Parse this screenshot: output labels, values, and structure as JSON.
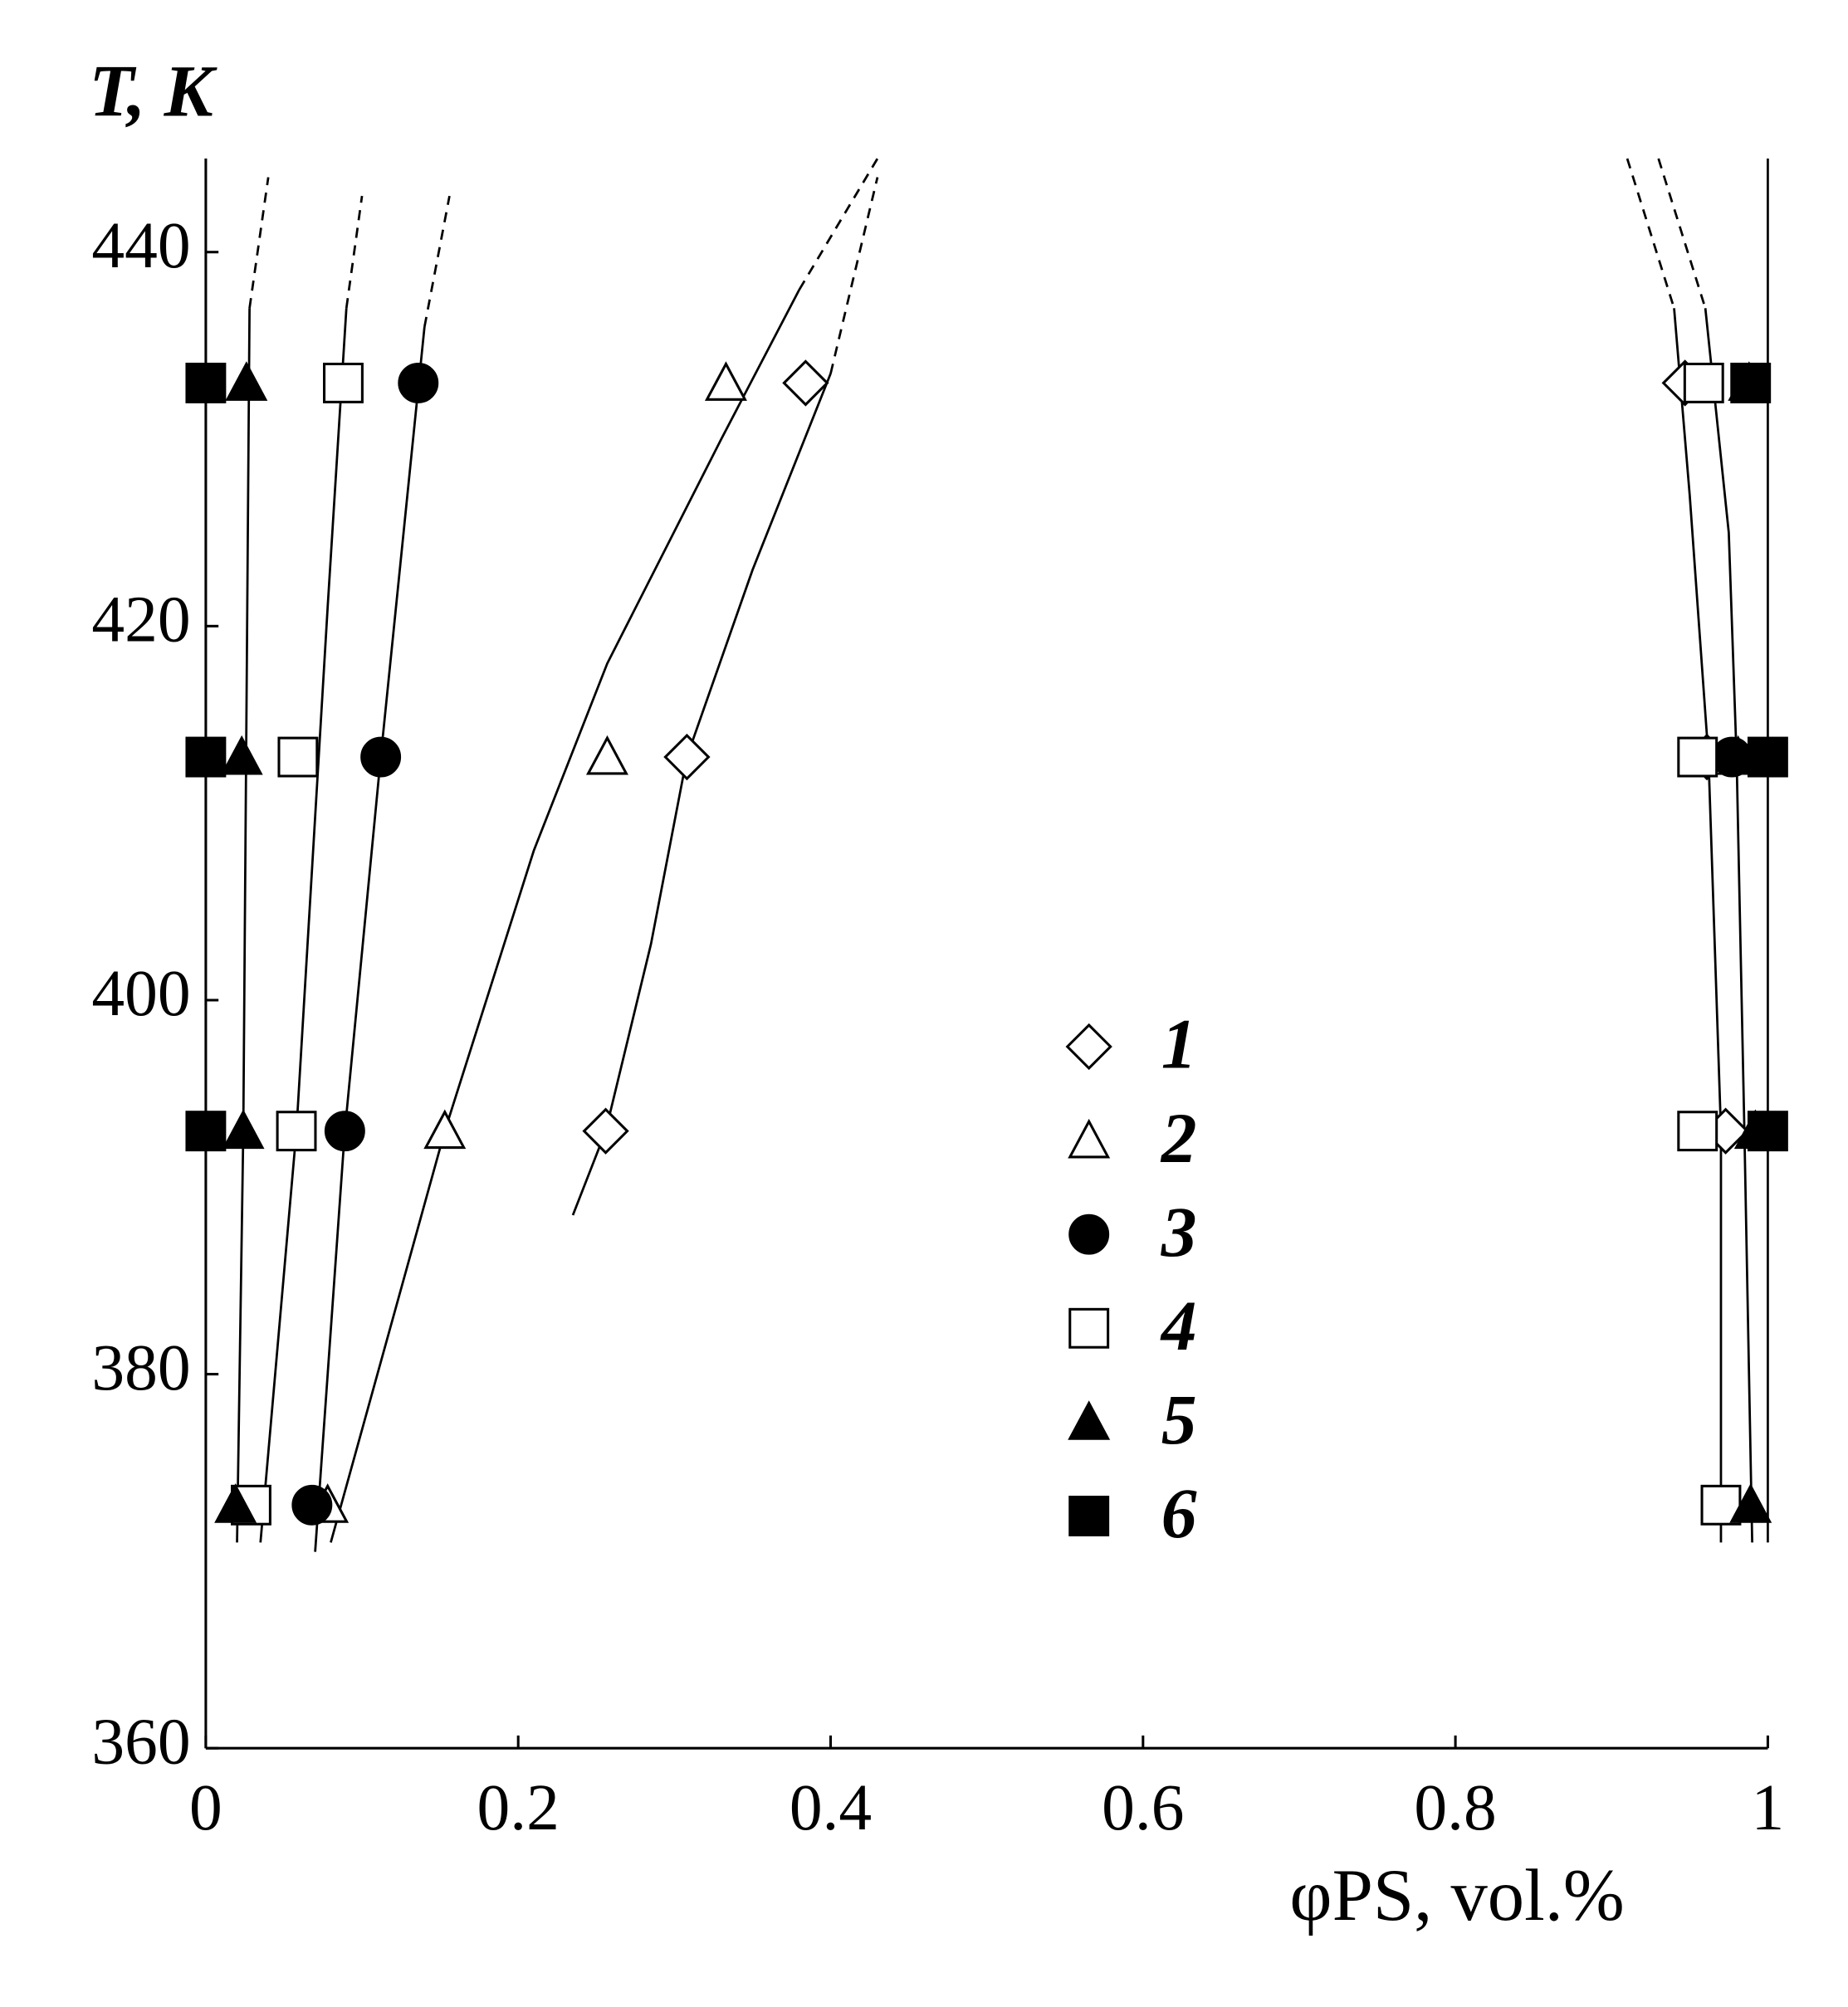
{
  "chart_data": {
    "type": "scatter",
    "xlabel": "φPS, vol.%",
    "ylabel": "T, K",
    "xlim": [
      0,
      1
    ],
    "ylim": [
      360,
      445
    ],
    "xticks": [
      0,
      0.2,
      0.4,
      0.6,
      0.8,
      1
    ],
    "yticks": [
      360,
      380,
      400,
      420,
      440
    ],
    "series": [
      {
        "name": "1",
        "marker": "diamond",
        "filled": false,
        "x": [
          0.256,
          0.308,
          0.384,
          0.973,
          0.961,
          0.947
        ],
        "values": [
          393,
          413,
          433,
          393,
          413,
          433
        ]
      },
      {
        "name": "2",
        "marker": "triangle",
        "filled": false,
        "x": [
          0.078,
          0.153,
          0.257,
          0.333
        ],
        "values": [
          373,
          393,
          413,
          433
        ]
      },
      {
        "name": "3",
        "marker": "circle",
        "filled": true,
        "x": [
          0.068,
          0.089,
          0.112,
          0.136,
          0.977
        ],
        "values": [
          373,
          393,
          413,
          433,
          413
        ]
      },
      {
        "name": "4",
        "marker": "square",
        "filled": false,
        "x": [
          0.029,
          0.058,
          0.059,
          0.088,
          0.97,
          0.955,
          0.955,
          0.959
        ],
        "values": [
          373,
          393,
          413,
          433,
          373,
          393,
          413,
          433
        ]
      },
      {
        "name": "5",
        "marker": "triangle",
        "filled": true,
        "x": [
          0.019,
          0.024,
          0.023,
          0.026,
          0.989,
          0.992,
          0.981,
          0.988
        ],
        "values": [
          373,
          393,
          413,
          433,
          373,
          393,
          413,
          433
        ]
      },
      {
        "name": "6",
        "marker": "square",
        "filled": true,
        "x": [
          0,
          0,
          0,
          1,
          1,
          0.989
        ],
        "values": [
          393,
          413,
          433,
          393,
          413,
          433
        ]
      }
    ],
    "curves": [
      {
        "style": "solid",
        "x": [
          0.235,
          0.256,
          0.285,
          0.308,
          0.35,
          0.4
        ],
        "y": [
          388.5,
          393,
          403,
          413,
          423,
          433.5
        ]
      },
      {
        "style": "dashed",
        "x": [
          0.4,
          0.43
        ],
        "y": [
          433.5,
          444
        ]
      },
      {
        "style": "solid",
        "x": [
          0.08,
          0.153,
          0.21,
          0.257,
          0.33,
          0.38
        ],
        "y": [
          371,
          393,
          408,
          418,
          430,
          438
        ]
      },
      {
        "style": "dashed",
        "x": [
          0.38,
          0.43
        ],
        "y": [
          438,
          445
        ]
      },
      {
        "style": "solid",
        "x": [
          0.07,
          0.089,
          0.112,
          0.14
        ],
        "y": [
          370.5,
          393,
          413,
          436
        ]
      },
      {
        "style": "dashed",
        "x": [
          0.14,
          0.156
        ],
        "y": [
          436,
          443
        ]
      },
      {
        "style": "solid",
        "x": [
          0.035,
          0.058,
          0.078,
          0.09
        ],
        "y": [
          371,
          393,
          421,
          437
        ]
      },
      {
        "style": "dashed",
        "x": [
          0.09,
          0.1
        ],
        "y": [
          437,
          443
        ]
      },
      {
        "style": "solid",
        "x": [
          0.02,
          0.024,
          0.028
        ],
        "y": [
          371,
          393,
          437
        ]
      },
      {
        "style": "dashed",
        "x": [
          0.028,
          0.04
        ],
        "y": [
          437,
          444
        ]
      },
      {
        "style": "dashed",
        "x": [
          0.91,
          0.94
        ],
        "y": [
          445,
          437
        ]
      },
      {
        "style": "solid",
        "x": [
          0.94,
          0.95,
          0.962,
          0.97,
          0.97
        ],
        "y": [
          437,
          427,
          413,
          393,
          371
        ]
      },
      {
        "style": "dashed",
        "x": [
          0.93,
          0.96
        ],
        "y": [
          445,
          437
        ]
      },
      {
        "style": "solid",
        "x": [
          0.96,
          0.975,
          0.98,
          0.985,
          0.99
        ],
        "y": [
          437,
          425,
          413,
          393,
          371
        ]
      },
      {
        "style": "solid",
        "x": [
          1,
          1
        ],
        "y": [
          371,
          445
        ]
      }
    ]
  }
}
